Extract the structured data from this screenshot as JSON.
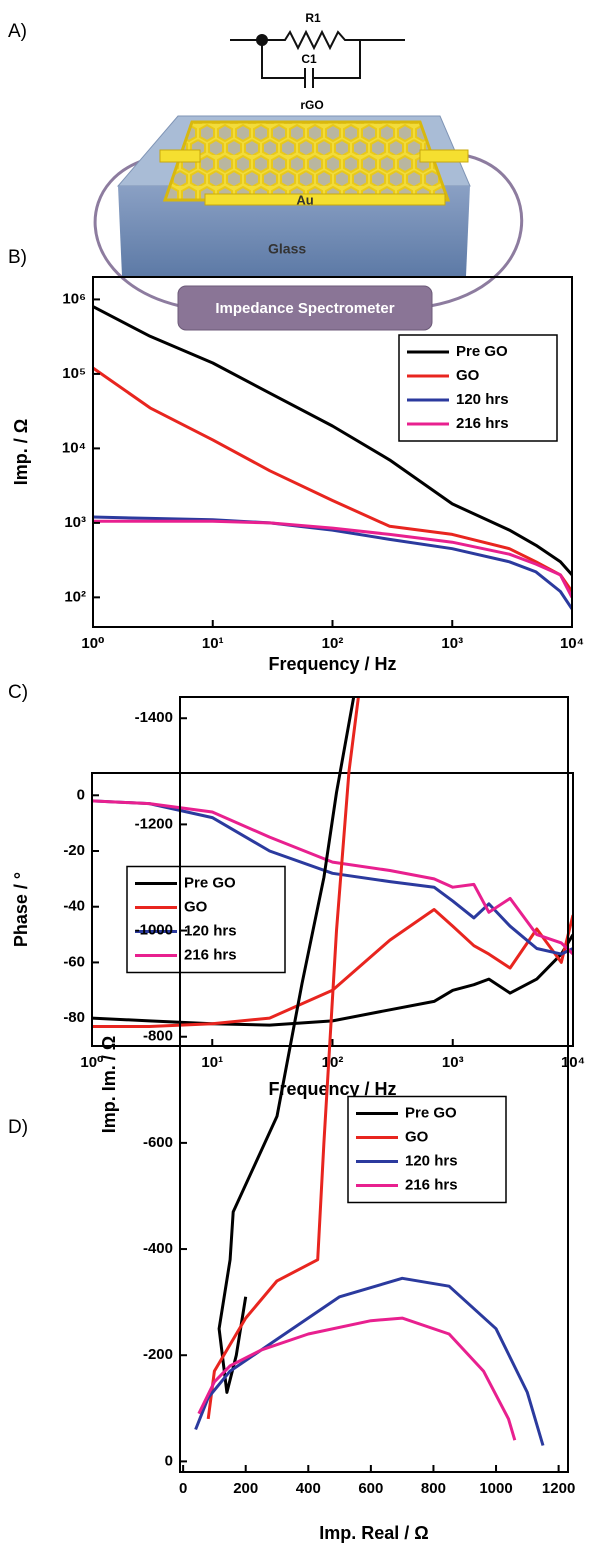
{
  "diagram": {
    "panel": "A)",
    "resistor": "R1",
    "capacitor": "C1",
    "film": "rGO",
    "electrode": "Au",
    "substrate": "Glass",
    "instrument": "Impedance Spectrometer"
  },
  "chart_data": [
    {
      "type": "line",
      "panel": "B)",
      "y_label": "Imp. / Ω",
      "x_label": "Frequency / Hz",
      "xscale": "log",
      "yscale": "log",
      "legend_position": "upper right",
      "xlim": [
        1,
        10000
      ],
      "ylim": [
        40,
        2000000
      ],
      "xticks": [
        {
          "value": 1,
          "label": "10⁰"
        },
        {
          "value": 10,
          "label": "10¹"
        },
        {
          "value": 100,
          "label": "10²"
        },
        {
          "value": 1000,
          "label": "10³"
        },
        {
          "value": 10000,
          "label": "10⁴"
        }
      ],
      "yticks": [
        {
          "value": 100,
          "label": "10²"
        },
        {
          "value": 1000,
          "label": "10³"
        },
        {
          "value": 10000,
          "label": "10⁴"
        },
        {
          "value": 100000,
          "label": "10⁵"
        },
        {
          "value": 1000000,
          "label": "10⁶"
        }
      ],
      "x": [
        1,
        3,
        10,
        30,
        100,
        300,
        1000,
        3000,
        5000,
        8000,
        10000
      ],
      "series": [
        {
          "name": "Pre GO",
          "color": "#000000",
          "values": [
            800000,
            320000,
            140000,
            55000,
            20000,
            7000,
            1800,
            800,
            500,
            300,
            200
          ]
        },
        {
          "name": "GO",
          "color": "#e8251f",
          "values": [
            120000,
            35000,
            13000,
            5000,
            2000,
            900,
            700,
            450,
            300,
            200,
            120
          ]
        },
        {
          "name": "120 hrs",
          "color": "#2b3a9e",
          "values": [
            1200,
            1150,
            1100,
            1000,
            800,
            600,
            450,
            300,
            220,
            120,
            70
          ]
        },
        {
          "name": "216 hrs",
          "color": "#e8208f",
          "values": [
            1050,
            1050,
            1050,
            1000,
            850,
            700,
            550,
            380,
            280,
            200,
            100
          ]
        }
      ]
    },
    {
      "type": "line",
      "panel": "C)",
      "y_label": "Phase / °",
      "x_label": "Frequency / Hz",
      "xscale": "log",
      "yscale": "linear",
      "legend_position": "center left",
      "xlim": [
        1,
        10000
      ],
      "ylim": [
        -90,
        8
      ],
      "xticks": [
        {
          "value": 1,
          "label": "10⁰"
        },
        {
          "value": 10,
          "label": "10¹"
        },
        {
          "value": 100,
          "label": "10²"
        },
        {
          "value": 1000,
          "label": "10³"
        },
        {
          "value": 10000,
          "label": "10⁴"
        }
      ],
      "yticks": [
        -80,
        -60,
        -40,
        -20,
        0
      ],
      "x": [
        1,
        3,
        10,
        30,
        100,
        300,
        700,
        1000,
        1500,
        2000,
        3000,
        5000,
        8000,
        10000
      ],
      "series": [
        {
          "name": "Pre GO",
          "color": "#000000",
          "values": [
            -80,
            -81,
            -82,
            -82.5,
            -81,
            -77,
            -74,
            -70,
            -68,
            -66,
            -71,
            -66,
            -57,
            -50
          ]
        },
        {
          "name": "GO",
          "color": "#e8251f",
          "values": [
            -83,
            -83,
            -82,
            -80,
            -70,
            -52,
            -41,
            -47,
            -54,
            -57,
            -62,
            -48,
            -60,
            -43
          ]
        },
        {
          "name": "120 hrs",
          "color": "#2b3a9e",
          "values": [
            -2,
            -3,
            -8,
            -20,
            -28,
            -31,
            -33,
            -38,
            -44,
            -39,
            -47,
            -55,
            -57,
            -55
          ]
        },
        {
          "name": "216 hrs",
          "color": "#e8208f",
          "values": [
            -2,
            -3,
            -6,
            -15,
            -24,
            -27,
            -30,
            -33,
            -32,
            -42,
            -37,
            -50,
            -53,
            -57
          ]
        }
      ]
    },
    {
      "type": "line",
      "panel": "D)",
      "y_label": "Imp. Im. / Ω",
      "x_label": "Imp. Real / Ω",
      "xscale": "linear",
      "yscale": "linear",
      "legend_position": "center right",
      "xlim": [
        -10,
        1230
      ],
      "ylim": [
        20,
        -1440
      ],
      "xticks": [
        0,
        200,
        400,
        600,
        800,
        1000,
        1200
      ],
      "yticks": [
        0,
        -200,
        -400,
        -600,
        -800,
        -1000,
        -1200,
        -1400
      ],
      "series": [
        {
          "name": "Pre GO",
          "color": "#000000",
          "x": [
            200,
            170,
            140,
            115,
            150,
            160,
            230,
            300,
            380,
            450,
            490,
            545
          ],
          "values": [
            -310,
            -200,
            -130,
            -250,
            -380,
            -470,
            -560,
            -650,
            -900,
            -1100,
            -1260,
            -1440
          ]
        },
        {
          "name": "GO",
          "color": "#e8251f",
          "x": [
            80,
            100,
            200,
            300,
            430,
            450,
            490,
            530,
            560
          ],
          "values": [
            -80,
            -170,
            -270,
            -340,
            -380,
            -600,
            -1000,
            -1300,
            -1440
          ]
        },
        {
          "name": "120 hrs",
          "color": "#2b3a9e",
          "x": [
            40,
            80,
            150,
            300,
            500,
            700,
            850,
            1000,
            1100,
            1150
          ],
          "values": [
            -60,
            -120,
            -170,
            -230,
            -310,
            -345,
            -330,
            -250,
            -130,
            -30
          ]
        },
        {
          "name": "216 hrs",
          "color": "#e8208f",
          "x": [
            50,
            100,
            150,
            250,
            400,
            600,
            700,
            850,
            960,
            1040,
            1060
          ],
          "values": [
            -90,
            -150,
            -180,
            -210,
            -240,
            -265,
            -270,
            -240,
            -170,
            -80,
            -40
          ]
        }
      ]
    }
  ]
}
